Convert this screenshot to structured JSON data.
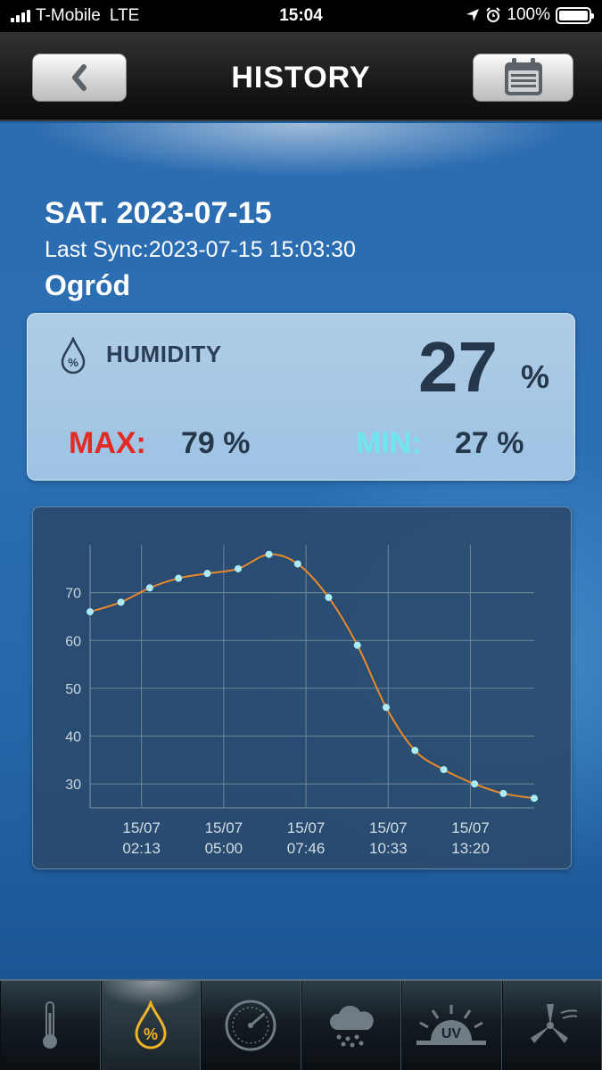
{
  "status_bar": {
    "carrier": "T-Mobile",
    "network": "LTE",
    "time": "15:04",
    "battery": "100%"
  },
  "nav": {
    "title": "HISTORY",
    "back_icon": "chevron-left-icon",
    "calendar_icon": "calendar-icon"
  },
  "header": {
    "date": "SAT. 2023-07-15",
    "last_sync": "Last Sync:2023-07-15 15:03:30",
    "location": "Ogród"
  },
  "humidity": {
    "label": "HUMIDITY",
    "value": "27",
    "unit": "%",
    "max_label": "MAX:",
    "max_value": "79 %",
    "min_label": "MIN:",
    "min_value": "27 %",
    "colors": {
      "max": "#e22a24",
      "min": "#6fe6ee"
    }
  },
  "chart_data": {
    "type": "line",
    "title": "",
    "xlabel": "",
    "ylabel": "",
    "ylim": [
      25,
      80
    ],
    "yticks": [
      30,
      40,
      50,
      60,
      70
    ],
    "xticks": [
      {
        "x": 1.25,
        "date": "15/07",
        "time": "02:13"
      },
      {
        "x": 3.25,
        "date": "15/07",
        "time": "05:00"
      },
      {
        "x": 5.25,
        "date": "15/07",
        "time": "07:46"
      },
      {
        "x": 7.25,
        "date": "15/07",
        "time": "10:33"
      },
      {
        "x": 9.25,
        "date": "15/07",
        "time": "13:20"
      }
    ],
    "xlim": [
      0,
      10.8
    ],
    "grid": true,
    "series": [
      {
        "x": [
          0,
          0.75,
          1.45,
          2.15,
          2.85,
          3.6,
          4.35,
          5.05,
          5.8,
          6.5,
          7.2,
          7.9,
          8.6,
          9.35,
          10.05,
          10.8
        ],
        "values": [
          66,
          68,
          71,
          73,
          74,
          75,
          78,
          76,
          69,
          59,
          46,
          37,
          33,
          30,
          28,
          27
        ],
        "line_color": "#e8892c",
        "point_color": "#a9ecf5"
      }
    ]
  },
  "tabs": [
    {
      "name": "temperature",
      "icon": "thermometer-icon",
      "active": false
    },
    {
      "name": "humidity",
      "icon": "humidity-drop-icon",
      "active": true
    },
    {
      "name": "barometer",
      "icon": "barometer-gauge-icon",
      "active": false
    },
    {
      "name": "rain",
      "icon": "rain-cloud-icon",
      "active": false
    },
    {
      "name": "uv",
      "icon": "uv-sun-icon",
      "active": false
    },
    {
      "name": "wind",
      "icon": "wind-turbine-icon",
      "active": false
    }
  ]
}
